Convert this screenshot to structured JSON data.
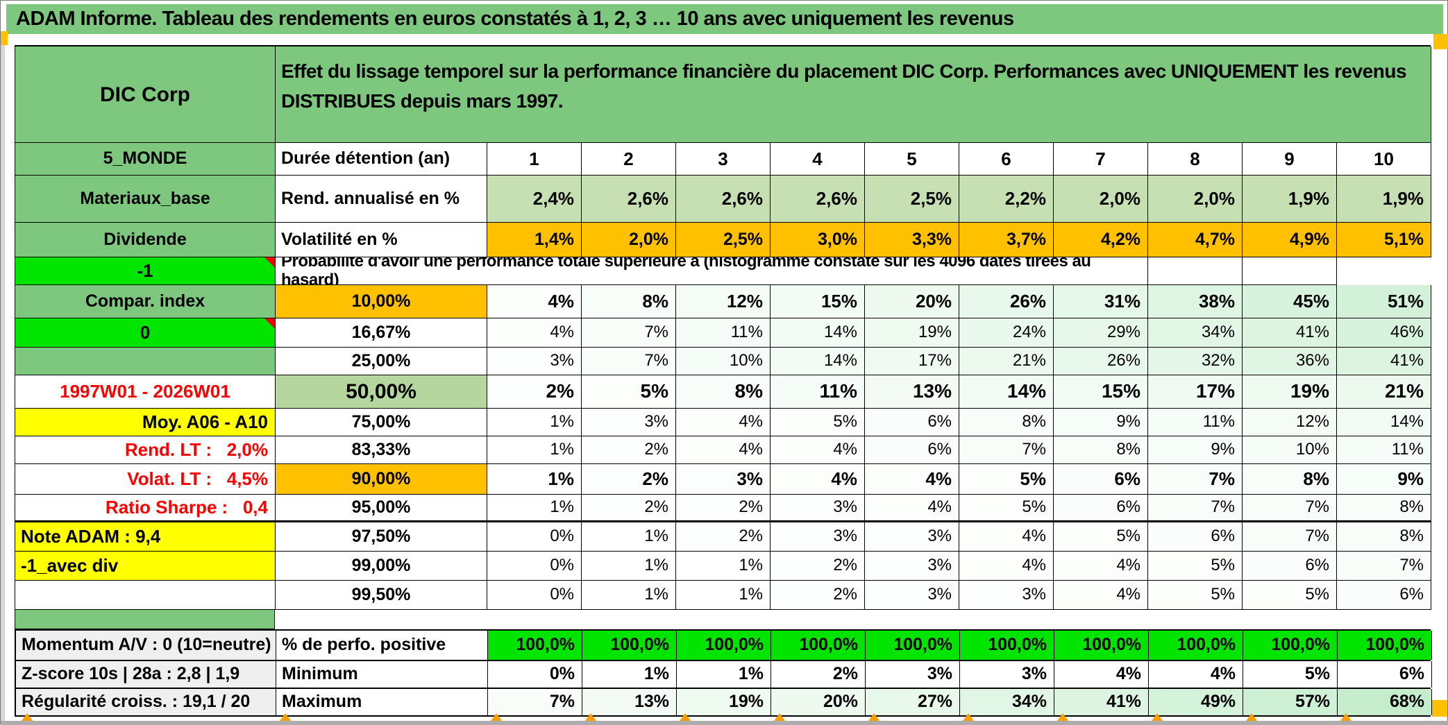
{
  "title_bar": {
    "text": "ADAM Informe. Tableau des rendements en euros constatés à 1, 2, 3 … 10 ans avec uniquement les revenus"
  },
  "palette": {
    "band_green": "#7DC87E",
    "bright_green": "#00E400",
    "light_green": "#C6E0B4",
    "mid_green_50": "#B5D69E",
    "orange": "#FFC000",
    "yellow": "#FFFF00",
    "gray_label": "#EFEFEF",
    "red_text": "#FF0000",
    "gradient_max": "#A9E4B4"
  },
  "header": {
    "corp": "DIC Corp",
    "description": "Effet du lissage temporel sur la performance financière du placement DIC Corp. Performances avec UNIQUEMENT les revenus DISTRIBUES depuis mars 1997."
  },
  "top_rows": [
    {
      "a": "5_MONDE",
      "b": "Durée détention (an)",
      "values": [
        "1",
        "2",
        "3",
        "4",
        "5",
        "6",
        "7",
        "8",
        "9",
        "10"
      ]
    },
    {
      "a": "Materiaux_base",
      "b": "Rend. annualisé en %",
      "values": [
        "2,4%",
        "2,6%",
        "2,6%",
        "2,6%",
        "2,5%",
        "2,2%",
        "2,0%",
        "2,0%",
        "1,9%",
        "1,9%"
      ]
    },
    {
      "a": "Dividende",
      "b": "Volatilité en %",
      "values": [
        "1,4%",
        "2,0%",
        "2,5%",
        "3,0%",
        "3,3%",
        "3,7%",
        "4,2%",
        "4,7%",
        "4,9%",
        "5,1%"
      ]
    }
  ],
  "banner": {
    "a": "-1",
    "text": "Probabilité d'avoir une performance totale supérieure à (histogramme constaté sur les 4096 dates tirées au hasard)"
  },
  "prob_rows": [
    {
      "a": "Compar. index",
      "threshold": "10,00%",
      "values": [
        4,
        8,
        12,
        15,
        20,
        26,
        31,
        38,
        45,
        51
      ]
    },
    {
      "a": "0",
      "threshold": "16,67%",
      "values": [
        4,
        7,
        11,
        14,
        19,
        24,
        29,
        34,
        41,
        46
      ]
    },
    {
      "a": "",
      "threshold": "25,00%",
      "values": [
        3,
        7,
        10,
        14,
        17,
        21,
        26,
        32,
        36,
        41
      ]
    },
    {
      "a": "1997W01 - 2026W01",
      "threshold": "50,00%",
      "values": [
        2,
        5,
        8,
        11,
        13,
        14,
        15,
        17,
        19,
        21
      ]
    },
    {
      "a": "Moy. A06 - A10",
      "threshold": "75,00%",
      "values": [
        1,
        3,
        4,
        5,
        6,
        8,
        9,
        11,
        12,
        14
      ]
    },
    {
      "a": "Rend. LT :   2,0%",
      "threshold": "83,33%",
      "values": [
        1,
        2,
        4,
        4,
        6,
        7,
        8,
        9,
        10,
        11
      ]
    },
    {
      "a": "Volat. LT :   4,5%",
      "threshold": "90,00%",
      "values": [
        1,
        2,
        3,
        4,
        4,
        5,
        6,
        7,
        8,
        9
      ]
    },
    {
      "a": "Ratio Sharpe :   0,4",
      "threshold": "95,00%",
      "values": [
        1,
        2,
        2,
        3,
        4,
        5,
        6,
        7,
        7,
        8
      ]
    },
    {
      "a": "Note ADAM : 9,4",
      "threshold": "97,50%",
      "values": [
        0,
        1,
        2,
        3,
        3,
        4,
        5,
        6,
        7,
        8
      ]
    },
    {
      "a": "-1_avec div",
      "threshold": "99,00%",
      "values": [
        0,
        1,
        1,
        2,
        3,
        4,
        4,
        5,
        6,
        7
      ]
    },
    {
      "a": "",
      "threshold": "99,50%",
      "values": [
        0,
        1,
        1,
        2,
        3,
        3,
        4,
        5,
        5,
        6
      ]
    }
  ],
  "bottom": {
    "rows": [
      {
        "a": "Momentum A/V : 0 (10=neutre)",
        "b": "% de perfo. positive",
        "values": [
          "100,0%",
          "100,0%",
          "100,0%",
          "100,0%",
          "100,0%",
          "100,0%",
          "100,0%",
          "100,0%",
          "100,0%",
          "100,0%"
        ]
      },
      {
        "a": "Z-score 10s | 28a : 2,8 | 1,9",
        "b": "Minimum",
        "values": [
          0,
          1,
          1,
          2,
          3,
          3,
          4,
          4,
          5,
          6
        ]
      },
      {
        "a": "Régularité croiss. : 19,1 / 20",
        "b": "Maximum",
        "values": [
          7,
          13,
          19,
          20,
          27,
          34,
          41,
          49,
          57,
          68
        ]
      }
    ]
  }
}
